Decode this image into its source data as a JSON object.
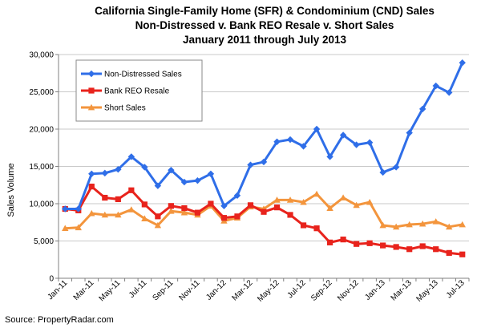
{
  "chart_data": {
    "type": "line",
    "title_lines": [
      "California Single-Family Home (SFR) & Condominium (CND) Sales",
      "Non-Distressed v. Bank REO Resale v. Short Sales",
      "January 2011 through July 2013"
    ],
    "ylabel": "Sales Volume",
    "xlabel": "",
    "ylim": [
      0,
      30000
    ],
    "y_ticks": [
      "0",
      "5,000",
      "10,000",
      "15,000",
      "20,000",
      "25,000",
      "30,000"
    ],
    "x": [
      "Jan-11",
      "Feb-11",
      "Mar-11",
      "Apr-11",
      "May-11",
      "Jun-11",
      "Jul-11",
      "Aug-11",
      "Sep-11",
      "Oct-11",
      "Nov-11",
      "Dec-11",
      "Jan-12",
      "Feb-12",
      "Mar-12",
      "Apr-12",
      "May-12",
      "Jun-12",
      "Jul-12",
      "Aug-12",
      "Sep-12",
      "Oct-12",
      "Nov-12",
      "Dec-12",
      "Jan-13",
      "Feb-13",
      "Mar-13",
      "Apr-13",
      "May-13",
      "Jun-13",
      "Jul-13"
    ],
    "x_tick_labels": [
      "Jan-11",
      "Mar-11",
      "May-11",
      "Jul-11",
      "Sep-11",
      "Nov-11",
      "Jan-12",
      "Mar-12",
      "May-12",
      "Jul-12",
      "Sep-12",
      "Nov-12",
      "Jan-13",
      "Mar-13",
      "May-13",
      "Jul-13"
    ],
    "series": [
      {
        "name": "Non-Distressed Sales",
        "color": "#2f6ee8",
        "marker": "diamond",
        "values": [
          9300,
          9300,
          14000,
          14100,
          14600,
          16300,
          14900,
          12400,
          14500,
          12900,
          13100,
          14000,
          9700,
          11100,
          15200,
          15600,
          18300,
          18600,
          17700,
          20000,
          16300,
          19200,
          17900,
          18200,
          14200,
          14900,
          19500,
          22700,
          25800,
          24900,
          28900
        ]
      },
      {
        "name": "Bank REO Resale",
        "color": "#e8231c",
        "marker": "square",
        "values": [
          9300,
          9100,
          12300,
          10800,
          10600,
          11800,
          9900,
          8300,
          9700,
          9400,
          8800,
          10000,
          8100,
          8300,
          9800,
          8900,
          9500,
          8500,
          7100,
          6700,
          4800,
          5200,
          4600,
          4700,
          4400,
          4200,
          3900,
          4300,
          3900,
          3400,
          3200
        ]
      },
      {
        "name": "Short Sales",
        "color": "#f3953d",
        "marker": "triangle",
        "values": [
          6700,
          6800,
          8700,
          8500,
          8500,
          9200,
          8000,
          7100,
          9000,
          8800,
          8500,
          9700,
          7700,
          8100,
          9600,
          9300,
          10500,
          10500,
          10200,
          11300,
          9400,
          10800,
          9800,
          10200,
          7100,
          6900,
          7200,
          7300,
          7600,
          6900,
          7200
        ]
      }
    ],
    "legend": {
      "placement": "top-left-inset"
    },
    "grid": {
      "horizontal": true,
      "vertical": false
    }
  },
  "source": "Source: PropertyRadar.com"
}
